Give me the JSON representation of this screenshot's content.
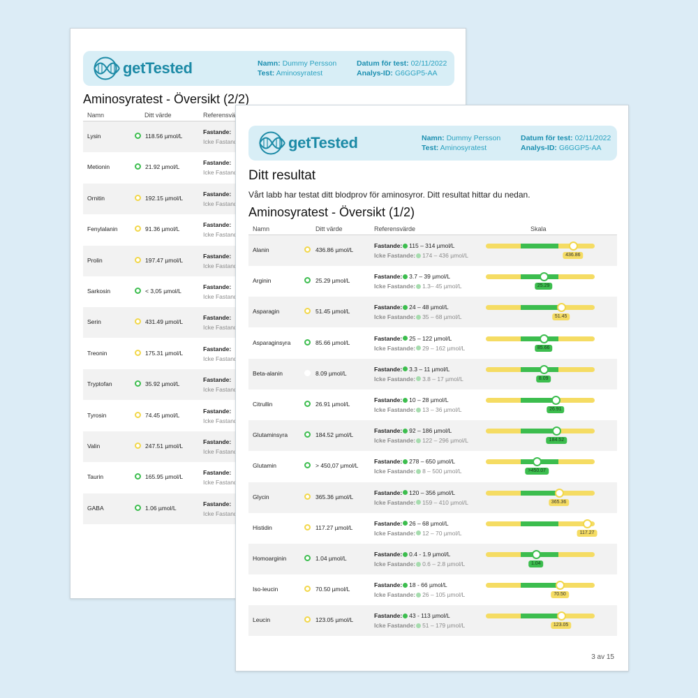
{
  "brand": {
    "logo_text": "getTested"
  },
  "header": {
    "name_label": "Namn:",
    "name_value": "Dummy Persson",
    "test_label": "Test:",
    "test_value": "Aminosyratest",
    "date_label": "Datum för test:",
    "date_value": "02/11/2022",
    "id_label": "Analys-ID:",
    "id_value": "G6GGP5-AA"
  },
  "back_page": {
    "title": "Aminosyratest - Översikt (2/2)",
    "columns": {
      "name": "Namn",
      "value": "Ditt värde",
      "ref": "Referensvär"
    },
    "ref_fast_label": "Fastande:",
    "ref_nonfast_label": "Icke Fastand",
    "rows": [
      {
        "name": "Lysin",
        "value": "118.56 µmol/L",
        "status": "green"
      },
      {
        "name": "Metionin",
        "value": "21.92 µmol/L",
        "status": "green"
      },
      {
        "name": "Ornitin",
        "value": "192.15 µmol/L",
        "status": "yellow"
      },
      {
        "name": "Fenylalanin",
        "value": "91.36 µmol/L",
        "status": "yellow"
      },
      {
        "name": "Prolin",
        "value": "197.47 µmol/L",
        "status": "yellow"
      },
      {
        "name": "Sarkosin",
        "value": "< 3,05 µmol/L",
        "status": "green"
      },
      {
        "name": "Serin",
        "value": "431.49 µmol/L",
        "status": "yellow"
      },
      {
        "name": "Treonin",
        "value": "175.31 µmol/L",
        "status": "yellow"
      },
      {
        "name": "Tryptofan",
        "value": "35.92 µmol/L",
        "status": "green"
      },
      {
        "name": "Tyrosin",
        "value": "74.45 µmol/L",
        "status": "yellow"
      },
      {
        "name": "Valin",
        "value": "247.51 µmol/L",
        "status": "yellow"
      },
      {
        "name": "Taurin",
        "value": "165.95 µmol/L",
        "status": "green"
      },
      {
        "name": "GABA",
        "value": "1.06 µmol/L",
        "status": "green"
      }
    ]
  },
  "front_page": {
    "heading": "Ditt resultat",
    "intro": "Vårt labb har testat ditt blodprov för aminosyror. Ditt resultat hittar du nedan.",
    "title": "Aminosyratest - Översikt (1/2)",
    "columns": {
      "name": "Namn",
      "value": "Ditt värde",
      "ref": "Referensvärde",
      "scale": "Skala"
    },
    "ref_fast_label": "Fastande:",
    "ref_nonfast_label": "Icke Fastande:",
    "page_number": "3 av 15",
    "rows": [
      {
        "name": "Alanin",
        "value": "436.86 µmol/L",
        "status": "yellow",
        "fast": "115 – 314 µmol/L",
        "nonfast": "174 – 436 µmol/L",
        "badge": "436.86",
        "scale_pos": 0.8
      },
      {
        "name": "Arginin",
        "value": "25.29 µmol/L",
        "status": "green",
        "fast": "3.7 – 39 µmol/L",
        "nonfast": "1.3– 45 µmol/L",
        "badge": "25.29",
        "scale_pos": 0.53
      },
      {
        "name": "Asparagin",
        "value": "51.45 µmol/L",
        "status": "yellow",
        "fast": "24 – 48 µmol/L",
        "nonfast": "35 – 68 µmol/L",
        "badge": "51.45",
        "scale_pos": 0.69
      },
      {
        "name": "Asparaginsyra",
        "value": "85.66 µmol/L",
        "status": "green",
        "fast": "25 – 122 µmol/L",
        "nonfast": "29 – 162 µmol/L",
        "badge": "85.66",
        "scale_pos": 0.53
      },
      {
        "name": "Beta-alanin",
        "value": "8.09 µmol/L",
        "status": "white",
        "fast": "3.3 – 11 µmol/L",
        "nonfast": "3.8 – 17 µmol/L",
        "badge": "8.09",
        "scale_pos": 0.53
      },
      {
        "name": "Citrullin",
        "value": "26.91 µmol/L",
        "status": "green",
        "fast": "10 – 28 µmol/L",
        "nonfast": "13 – 36 µmol/L",
        "badge": "26.91",
        "scale_pos": 0.64
      },
      {
        "name": "Glutaminsyra",
        "value": "184.52 µmol/L",
        "status": "green",
        "fast": "92 – 186 µmol/L",
        "nonfast": "122 – 296 µmol/L",
        "badge": "184.52",
        "scale_pos": 0.65
      },
      {
        "name": "Glutamin",
        "value": "> 450,07 µmol/L",
        "status": "green",
        "fast": "278 – 650 µmol/L",
        "nonfast": "8 – 500 µmol/L",
        "badge": ">450.07",
        "scale_pos": 0.47
      },
      {
        "name": "Glycin",
        "value": "365.36 µmol/L",
        "status": "yellow",
        "fast": "120 – 356 µmol/L",
        "nonfast": "159 – 410 µmol/L",
        "badge": "365.36",
        "scale_pos": 0.67
      },
      {
        "name": "Histidin",
        "value": "117.27 µmol/L",
        "status": "yellow",
        "fast": "26 – 68 µmol/L",
        "nonfast": "12 – 70 µmol/L",
        "badge": "117.27",
        "scale_pos": 0.93
      },
      {
        "name": "Homoarginin",
        "value": "1.04 µmol/L",
        "status": "green",
        "fast": "0.4 - 1.9 µmol/L",
        "nonfast": "0.6 – 2.8 µmol/L",
        "badge": "1.04",
        "scale_pos": 0.46
      },
      {
        "name": "Iso-leucin",
        "value": "70.50 µmol/L",
        "status": "yellow",
        "fast": "18 - 66 µmol/L",
        "nonfast": "26 – 105 µmol/L",
        "badge": "70.50",
        "scale_pos": 0.68
      },
      {
        "name": "Leucin",
        "value": "123.05 µmol/L",
        "status": "yellow",
        "fast": "43 - 113 µmol/L",
        "nonfast": "51 – 179 µmol/L",
        "badge": "123.05",
        "scale_pos": 0.69
      }
    ]
  }
}
